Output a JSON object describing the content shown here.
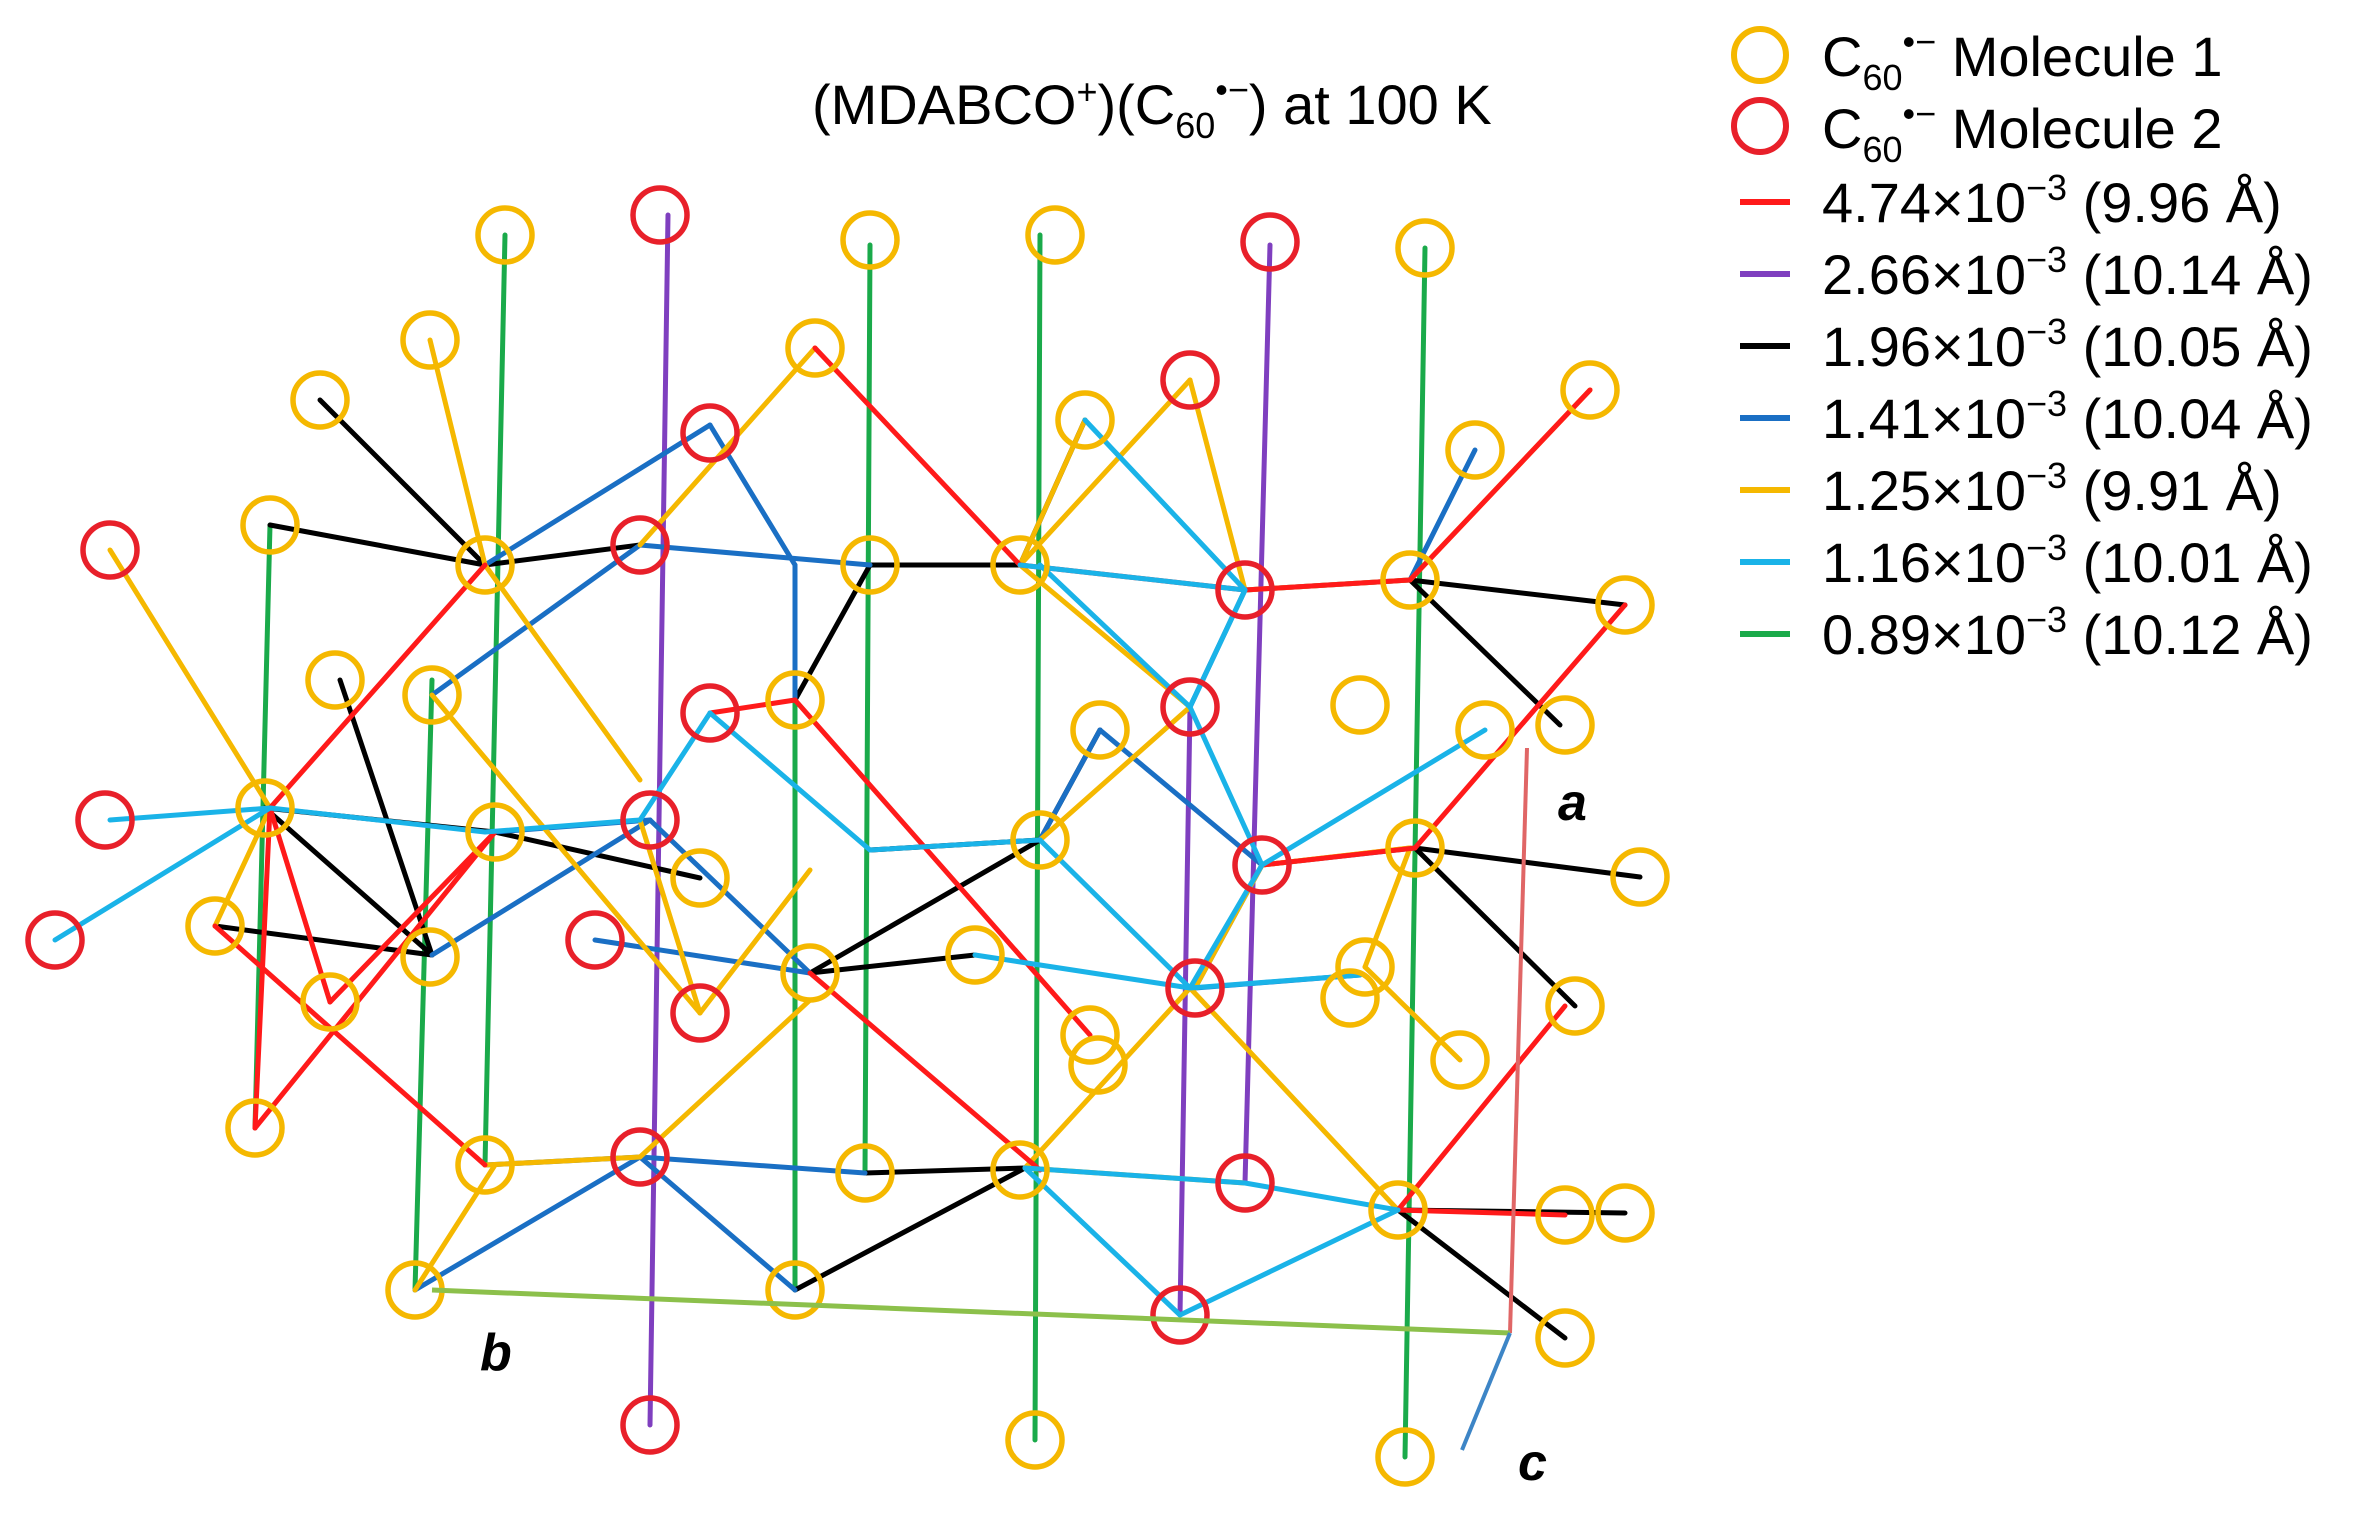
{
  "title": {
    "pre": "(MDABCO",
    "sup": "+",
    "mid": ")(C",
    "sub": "60",
    "sup2": "•−",
    "post": ") at 100 K"
  },
  "legend": {
    "molecule1": {
      "base": "C",
      "sub": "60",
      "sup": "•−",
      "rest": " Molecule 1",
      "color": "#f5b800"
    },
    "molecule2": {
      "base": "C",
      "sub": "60",
      "sup": "•−",
      "rest": " Molecule 2",
      "color": "#e8202a"
    },
    "bonds": [
      {
        "value": "4.74×10",
        "exp": "−3",
        "dist": " (9.96 Å)",
        "color": "#ff1a1a"
      },
      {
        "value": "2.66×10",
        "exp": "−3",
        "dist": " (10.14 Å)",
        "color": "#7f3fbf"
      },
      {
        "value": "1.96×10",
        "exp": "−3",
        "dist": " (10.05 Å)",
        "color": "#000000"
      },
      {
        "value": "1.41×10",
        "exp": "−3",
        "dist": " (10.04 Å)",
        "color": "#1a6fc4"
      },
      {
        "value": "1.25×10",
        "exp": "−3",
        "dist": " (9.91 Å)",
        "color": "#f5b800"
      },
      {
        "value": "1.16×10",
        "exp": "−3",
        "dist": " (10.01 Å)",
        "color": "#1ab3e8"
      },
      {
        "value": "0.89×10",
        "exp": "−3",
        "dist": " (10.12 Å)",
        "color": "#1aaa4a"
      }
    ]
  },
  "axes": {
    "a": "a",
    "b": "b",
    "c": "c"
  },
  "colors": {
    "red": "#ff1a1a",
    "purple": "#7f3fbf",
    "black": "#000000",
    "blue": "#1a6fc4",
    "yellow": "#f5b800",
    "cyan": "#1ab3e8",
    "green": "#1aaa4a",
    "axis_a": "#e06666",
    "axis_b": "#8cc04b",
    "axis_c": "#3d85c6"
  }
}
